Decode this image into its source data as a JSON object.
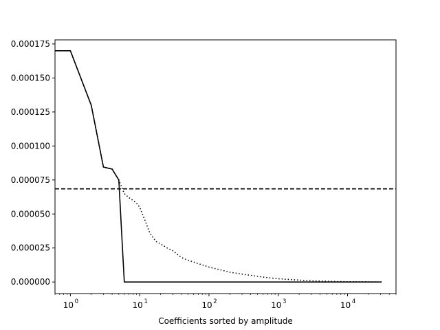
{
  "chart_data": {
    "type": "line",
    "title": "",
    "xlabel": "Coefficients sorted by amplitude",
    "ylabel": "",
    "xscale": "log",
    "xlim": [
      0.6,
      50000
    ],
    "ylim": [
      -8.5e-06,
      0.000178
    ],
    "grid": false,
    "legend": "none",
    "x_ticks": [
      {
        "value": 1,
        "base": "10",
        "exp": "0"
      },
      {
        "value": 10,
        "base": "10",
        "exp": "1"
      },
      {
        "value": 100,
        "base": "10",
        "exp": "2"
      },
      {
        "value": 1000,
        "base": "10",
        "exp": "3"
      },
      {
        "value": 10000,
        "base": "10",
        "exp": "4"
      }
    ],
    "y_ticks": [
      {
        "value": 0,
        "label": "0.000000"
      },
      {
        "value": 2.5e-05,
        "label": "0.000025"
      },
      {
        "value": 5e-05,
        "label": "0.000050"
      },
      {
        "value": 7.5e-05,
        "label": "0.000075"
      },
      {
        "value": 0.0001,
        "label": "0.000100"
      },
      {
        "value": 0.000125,
        "label": "0.000125"
      },
      {
        "value": 0.00015,
        "label": "0.000150"
      },
      {
        "value": 0.000175,
        "label": "0.000175"
      }
    ],
    "series": [
      {
        "style": "dotted",
        "color": "#000000",
        "x": [
          0.6,
          1,
          2,
          3,
          4,
          5,
          6,
          7,
          8,
          9,
          10,
          12,
          14,
          17,
          20,
          25,
          30,
          40,
          50,
          70,
          100,
          150,
          200,
          300,
          500,
          700,
          1000,
          2000,
          3000,
          5000,
          10000,
          20000,
          31000
        ],
        "y": [
          0.00017,
          0.00017,
          0.00013,
          8.45e-05,
          8.3e-05,
          7.5e-05,
          6.5e-05,
          6.2e-05,
          6e-05,
          5.8e-05,
          5.5e-05,
          4.5e-05,
          3.6e-05,
          3e-05,
          2.8e-05,
          2.5e-05,
          2.3e-05,
          1.8e-05,
          1.6e-05,
          1.35e-05,
          1.1e-05,
          8.8e-06,
          7.2e-06,
          5.8e-06,
          4.2e-06,
          3.2e-06,
          2.4e-06,
          1.4e-06,
          9e-07,
          5e-07,
          2e-07,
          1e-07,
          0.0
        ]
      },
      {
        "style": "solid",
        "color": "#000000",
        "x": [
          0.6,
          1,
          2,
          3,
          4,
          5,
          6,
          10,
          100,
          1000,
          10000,
          31000
        ],
        "y": [
          0.00017,
          0.00017,
          0.00013,
          8.45e-05,
          8.3e-05,
          7.5e-05,
          0.0,
          0.0,
          0.0,
          0.0,
          0.0,
          0.0
        ]
      },
      {
        "style": "dashed",
        "color": "#000000",
        "x": [
          0.6,
          50000
        ],
        "y": [
          6.85e-05,
          6.85e-05
        ]
      }
    ]
  }
}
